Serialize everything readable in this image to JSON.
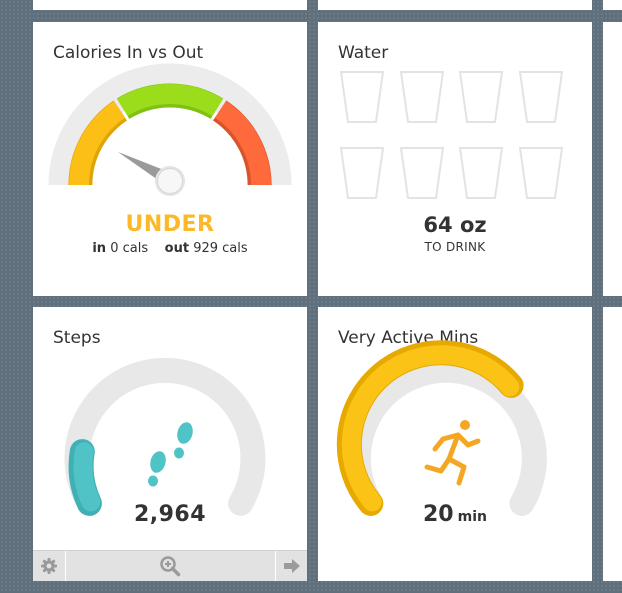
{
  "calories": {
    "title": "Calories In vs Out",
    "status": "UNDER",
    "in_label": "in",
    "in_value": "0 cals",
    "out_label": "out",
    "out_value": "929 cals",
    "colors": {
      "yellow": "#fbbf16",
      "green": "#9bdc1b",
      "red": "#ff6a3d",
      "status": "#fbb928"
    }
  },
  "water": {
    "title": "Water",
    "amount": "64 oz",
    "subtitle": "TO DRINK",
    "glasses_filled": 0,
    "glasses_total": 8
  },
  "steps": {
    "title": "Steps",
    "value": "2,964",
    "progress": 0.15,
    "icon": "footprints-icon",
    "colors": {
      "progress": "#4fc3c6",
      "track": "#e8e8e8"
    },
    "toolbar": {
      "settings_icon": "gear-icon",
      "zoom_icon": "zoom-in-icon",
      "next_icon": "arrow-right-icon"
    }
  },
  "active": {
    "title": "Very Active Mins",
    "value": "20",
    "unit": "min",
    "progress": 0.67,
    "icon": "running-person-icon",
    "colors": {
      "progress": "#fbc316",
      "track": "#e8e8e8"
    }
  }
}
